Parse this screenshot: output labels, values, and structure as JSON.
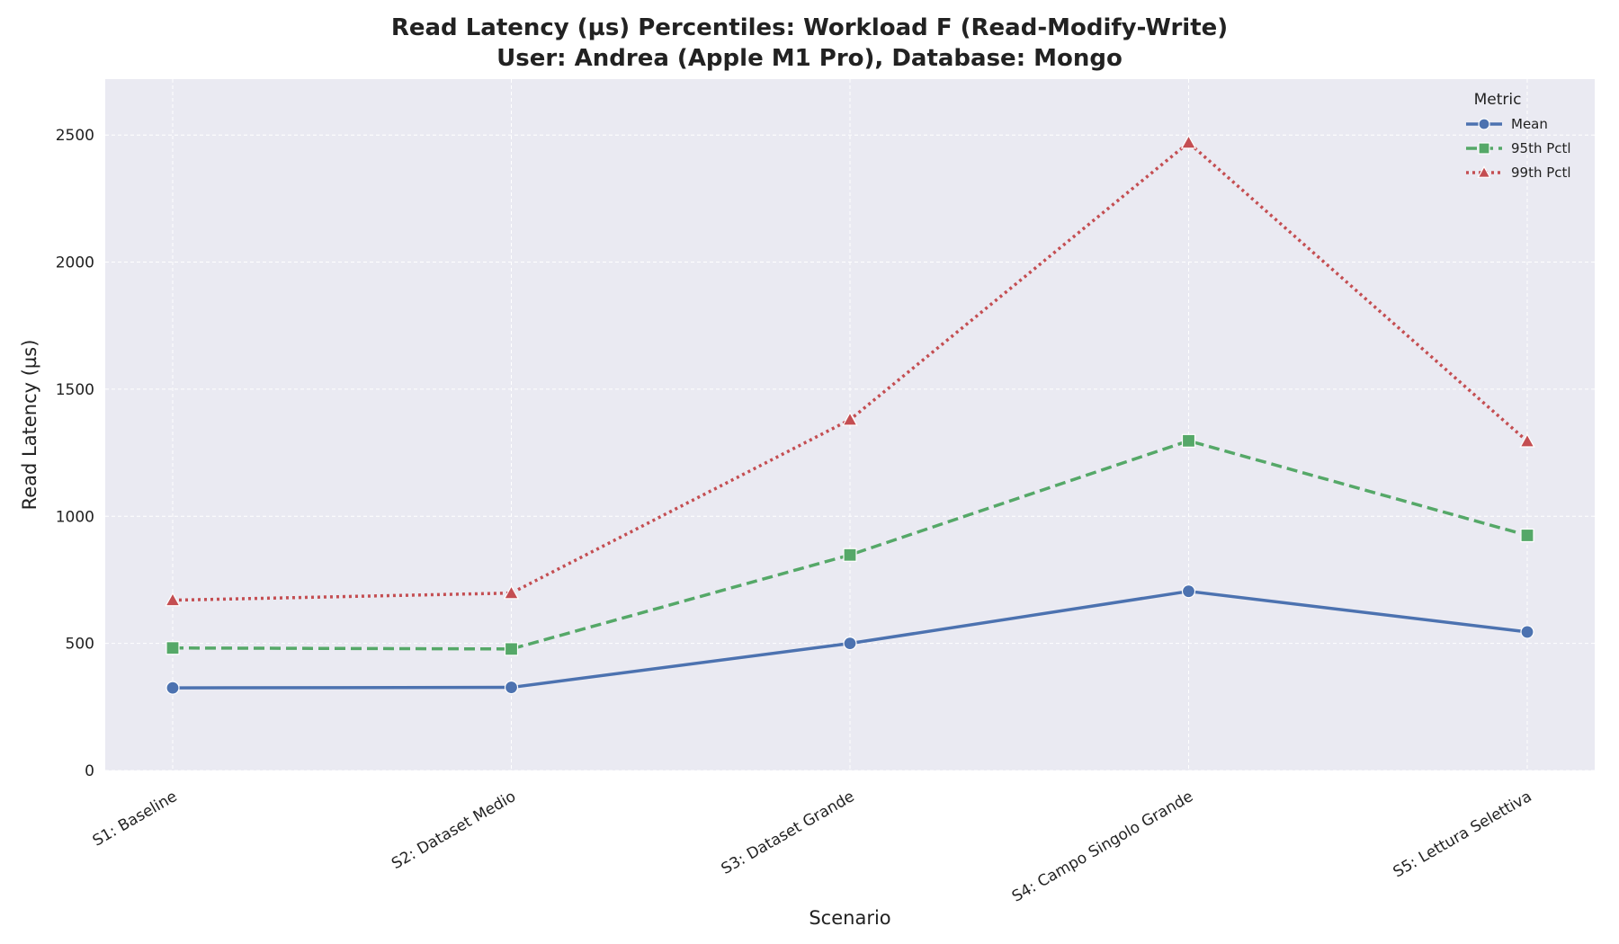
{
  "chart_data": {
    "type": "line",
    "title_line1": "Read Latency (µs) Percentiles: Workload F (Read-Modify-Write)",
    "title_line2": "User: Andrea (Apple M1 Pro), Database: Mongo",
    "xlabel": "Scenario",
    "ylabel": "Read Latency (µs)",
    "categories": [
      "S1: Baseline",
      "S2: Dataset Medio",
      "S3: Dataset Grande",
      "S4: Campo Singolo Grande",
      "S5: Lettura Selettiva"
    ],
    "ylim": [
      0,
      2720
    ],
    "yticks": [
      0,
      500,
      1000,
      1500,
      2000,
      2500
    ],
    "grid": true,
    "legend": {
      "title": "Metric",
      "placement": "top-right"
    },
    "series": [
      {
        "name": "Mean",
        "values": [
          325,
          327,
          500,
          705,
          545
        ],
        "color": "#4c72b0",
        "dash": "solid",
        "marker": "circle"
      },
      {
        "name": "95th Pctl",
        "values": [
          482,
          478,
          848,
          1297,
          925
        ],
        "color": "#55a868",
        "dash": "dashed",
        "marker": "square"
      },
      {
        "name": "99th Pctl",
        "values": [
          670,
          698,
          1380,
          2470,
          1295
        ],
        "color": "#c44e52",
        "dash": "dotted",
        "marker": "triangle"
      }
    ]
  }
}
